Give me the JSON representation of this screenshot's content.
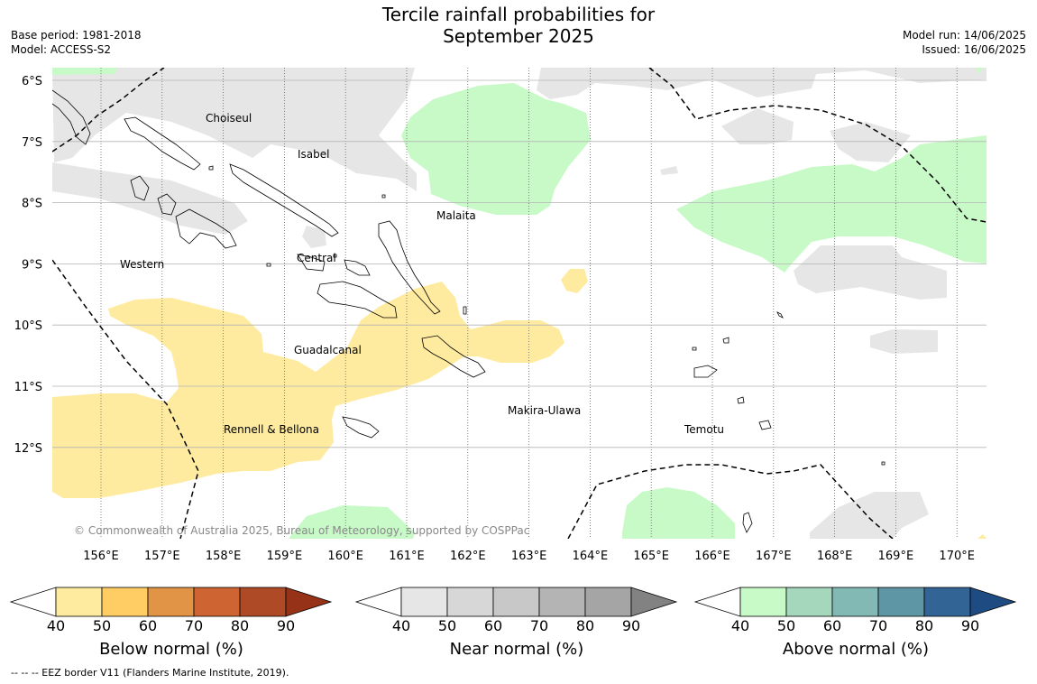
{
  "header": {
    "title_line1": "Tercile rainfall probabilities for",
    "title_line2": "September 2025",
    "base_period": "Base period: 1981-2018",
    "model": "Model: ACCESS-S2",
    "model_run": "Model run: 14/06/2025",
    "issued": "Issued: 16/06/2025"
  },
  "map": {
    "lat_labels": [
      "6°S",
      "7°S",
      "8°S",
      "9°S",
      "10°S",
      "11°S",
      "12°S"
    ],
    "lon_labels": [
      "156°E",
      "157°E",
      "158°E",
      "159°E",
      "160°E",
      "161°E",
      "162°E",
      "163°E",
      "164°E",
      "165°E",
      "166°E",
      "167°E",
      "168°E",
      "169°E",
      "170°E"
    ],
    "provinces": [
      "Choiseul",
      "Isabel",
      "Malaita",
      "Western",
      "Central",
      "Guadalcanal",
      "Makira-Ulawa",
      "Rennell & Bellona",
      "Temotu"
    ],
    "copyright": "© Commonwealth of Australia 2025, Bureau of Meteorology, supported by COSPPac",
    "colors": {
      "below_50": "#ffeba0",
      "near_40": "#e6e6e6",
      "above_40": "#c8fac8",
      "grid": "#b4b4b4"
    }
  },
  "colorbars": {
    "below": {
      "label": "Below normal (%)",
      "ticks": [
        "40",
        "50",
        "60",
        "70",
        "80",
        "90"
      ],
      "colors": [
        "#ffeba0",
        "#ffcd64",
        "#e29446",
        "#cd6432",
        "#af4a26",
        "#963218"
      ]
    },
    "near": {
      "label": "Near normal (%)",
      "ticks": [
        "40",
        "50",
        "60",
        "70",
        "80",
        "90"
      ],
      "colors": [
        "#e6e6e6",
        "#d7d7d7",
        "#c8c8c8",
        "#b4b4b4",
        "#a5a5a5",
        "#828282"
      ]
    },
    "above": {
      "label": "Above normal (%)",
      "ticks": [
        "40",
        "50",
        "60",
        "70",
        "80",
        "90"
      ],
      "colors": [
        "#c8fac8",
        "#a5d7bc",
        "#82b9b4",
        "#5f96a5",
        "#326496",
        "#1e4b82"
      ]
    }
  },
  "footnote": "-- -- -- EEZ border V11 (Flanders Marine Institute, 2019)."
}
